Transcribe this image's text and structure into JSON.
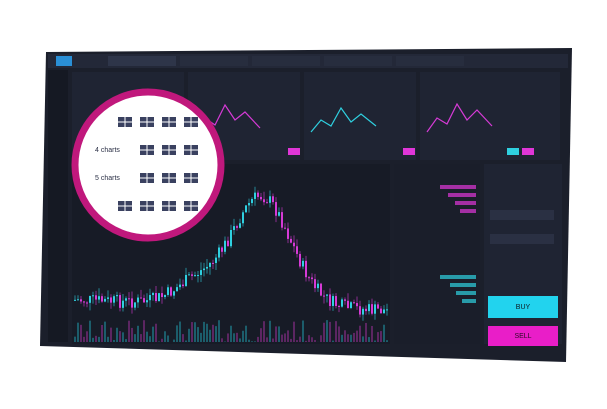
{
  "layout_menu": {
    "options": [
      "4 charts",
      "5 charts"
    ]
  },
  "order_panel": {
    "buy": "BUY",
    "sell": "SELL"
  }
}
